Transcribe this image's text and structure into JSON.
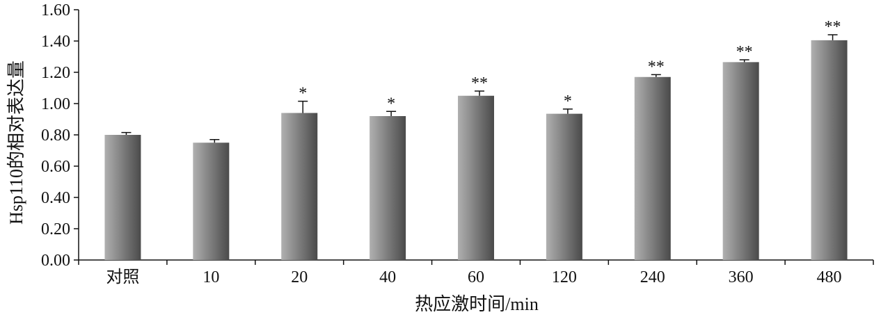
{
  "chart_data": {
    "type": "bar",
    "categories": [
      "对照",
      "10",
      "20",
      "40",
      "60",
      "120",
      "240",
      "360",
      "480"
    ],
    "values": [
      0.8,
      0.75,
      0.94,
      0.92,
      1.05,
      0.935,
      1.17,
      1.265,
      1.405
    ],
    "error": [
      0.015,
      0.02,
      0.075,
      0.03,
      0.03,
      0.03,
      0.015,
      0.015,
      0.035
    ],
    "significance": [
      "",
      "",
      "*",
      "*",
      "**",
      "*",
      "**",
      "**",
      "**"
    ],
    "xlabel": "热应激时间/min",
    "ylabel": "Hsp110的相对表达量",
    "ylim": [
      0,
      1.6
    ],
    "yticks": [
      "0.00",
      "0.20",
      "0.40",
      "0.60",
      "0.80",
      "1.00",
      "1.20",
      "1.40",
      "1.60"
    ],
    "grid": false,
    "legend": "none",
    "bar_gradient": [
      "#b0b0b0",
      "#4a4a4a"
    ]
  }
}
